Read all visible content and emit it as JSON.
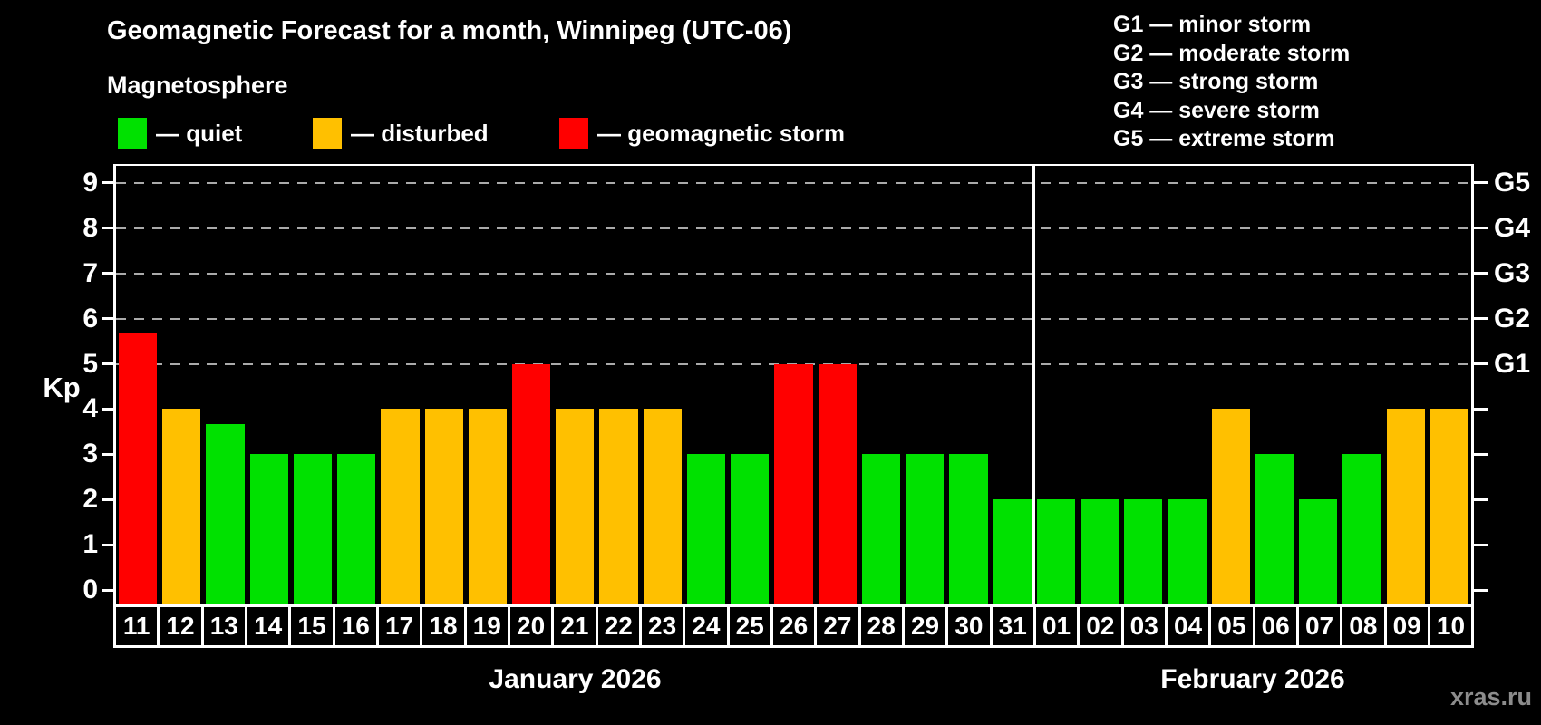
{
  "title": "Geomagnetic Forecast for a month, Winnipeg (UTC-06)",
  "subtitle": "Magnetosphere",
  "axis": {
    "y_label": "Kp"
  },
  "legend": [
    {
      "key": "quiet",
      "label": "— quiet"
    },
    {
      "key": "disturbed",
      "label": "— disturbed"
    },
    {
      "key": "storm",
      "label": "— geomagnetic storm"
    }
  ],
  "storm_scale": [
    "G1 — minor storm",
    "G2 — moderate storm",
    "G3 — strong storm",
    "G4 — severe storm",
    "G5 — extreme storm"
  ],
  "colors": {
    "quiet": "#00e100",
    "disturbed": "#ffc000",
    "storm": "#ff0000",
    "grid": "#aaaaaa",
    "watermark": "#8c8c8c"
  },
  "watermark": "xras.ru",
  "chart_data": {
    "type": "bar",
    "ylabel": "Kp",
    "ylim": [
      0,
      9
    ],
    "yticks": [
      0,
      1,
      2,
      3,
      4,
      5,
      6,
      7,
      8,
      9
    ],
    "gridlines_kp": [
      5,
      6,
      7,
      8,
      9
    ],
    "grid": "dashed-horizontal",
    "legend_position": "top-left",
    "right_axis": [
      {
        "label": "G5",
        "kp": 9
      },
      {
        "label": "G4",
        "kp": 8
      },
      {
        "label": "G3",
        "kp": 7
      },
      {
        "label": "G2",
        "kp": 6
      },
      {
        "label": "G1",
        "kp": 5
      }
    ],
    "months": [
      {
        "label": "January 2026",
        "days": 21
      },
      {
        "label": "February 2026",
        "days": 10
      }
    ],
    "bars": [
      {
        "day": "11",
        "kp": 5.67,
        "status": "storm"
      },
      {
        "day": "12",
        "kp": 4,
        "status": "disturbed"
      },
      {
        "day": "13",
        "kp": 3.67,
        "status": "quiet"
      },
      {
        "day": "14",
        "kp": 3,
        "status": "quiet"
      },
      {
        "day": "15",
        "kp": 3,
        "status": "quiet"
      },
      {
        "day": "16",
        "kp": 3,
        "status": "quiet"
      },
      {
        "day": "17",
        "kp": 4,
        "status": "disturbed"
      },
      {
        "day": "18",
        "kp": 4,
        "status": "disturbed"
      },
      {
        "day": "19",
        "kp": 4,
        "status": "disturbed"
      },
      {
        "day": "20",
        "kp": 5,
        "status": "storm"
      },
      {
        "day": "21",
        "kp": 4,
        "status": "disturbed"
      },
      {
        "day": "22",
        "kp": 4,
        "status": "disturbed"
      },
      {
        "day": "23",
        "kp": 4,
        "status": "disturbed"
      },
      {
        "day": "24",
        "kp": 3,
        "status": "quiet"
      },
      {
        "day": "25",
        "kp": 3,
        "status": "quiet"
      },
      {
        "day": "26",
        "kp": 5,
        "status": "storm"
      },
      {
        "day": "27",
        "kp": 5,
        "status": "storm"
      },
      {
        "day": "28",
        "kp": 3,
        "status": "quiet"
      },
      {
        "day": "29",
        "kp": 3,
        "status": "quiet"
      },
      {
        "day": "30",
        "kp": 3,
        "status": "quiet"
      },
      {
        "day": "31",
        "kp": 2,
        "status": "quiet"
      },
      {
        "day": "01",
        "kp": 2,
        "status": "quiet"
      },
      {
        "day": "02",
        "kp": 2,
        "status": "quiet"
      },
      {
        "day": "03",
        "kp": 2,
        "status": "quiet"
      },
      {
        "day": "04",
        "kp": 2,
        "status": "quiet"
      },
      {
        "day": "05",
        "kp": 4,
        "status": "disturbed"
      },
      {
        "day": "06",
        "kp": 3,
        "status": "quiet"
      },
      {
        "day": "07",
        "kp": 2,
        "status": "quiet"
      },
      {
        "day": "08",
        "kp": 3,
        "status": "quiet"
      },
      {
        "day": "09",
        "kp": 4,
        "status": "disturbed"
      },
      {
        "day": "10",
        "kp": 4,
        "status": "disturbed"
      }
    ]
  }
}
